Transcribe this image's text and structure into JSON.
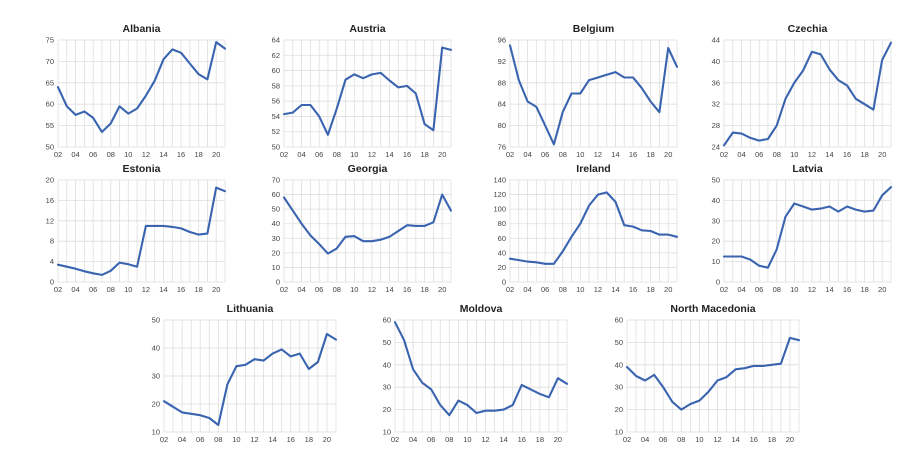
{
  "chart_data": [
    {
      "type": "line",
      "title": "Albania",
      "x": [
        2,
        3,
        4,
        5,
        6,
        7,
        8,
        9,
        10,
        11,
        12,
        13,
        14,
        15,
        16,
        17,
        18,
        19,
        20,
        21
      ],
      "x_ticks": [
        "02",
        "04",
        "06",
        "08",
        "10",
        "12",
        "14",
        "16",
        "18",
        "20"
      ],
      "ylim": [
        50,
        75
      ],
      "y_ticks": [
        "50",
        "55",
        "60",
        "65",
        "70",
        "75"
      ],
      "values": [
        64,
        59.5,
        57.5,
        58.3,
        56.8,
        53.5,
        55.5,
        59.5,
        57.8,
        59,
        62,
        65.5,
        70.5,
        72.8,
        72,
        69.5,
        67,
        65.8,
        74.5,
        73
      ],
      "grid": true,
      "series_color": "#3a64b0"
    },
    {
      "type": "line",
      "title": "Austria",
      "x": [
        2,
        3,
        4,
        5,
        6,
        7,
        8,
        9,
        10,
        11,
        12,
        13,
        14,
        15,
        16,
        17,
        18,
        19,
        20,
        21
      ],
      "x_ticks": [
        "02",
        "04",
        "06",
        "08",
        "10",
        "12",
        "14",
        "16",
        "18",
        "20"
      ],
      "ylim": [
        50,
        64
      ],
      "y_ticks": [
        "50",
        "52",
        "54",
        "56",
        "58",
        "60",
        "62",
        "64"
      ],
      "values": [
        54.3,
        54.5,
        55.5,
        55.5,
        54,
        51.6,
        55,
        58.8,
        59.5,
        59,
        59.5,
        59.7,
        58.7,
        57.8,
        58,
        57,
        53,
        52.2,
        63,
        62.7
      ],
      "grid": true,
      "series_color": "#3a64b0"
    },
    {
      "type": "line",
      "title": "Belgium",
      "x": [
        2,
        3,
        4,
        5,
        6,
        7,
        8,
        9,
        10,
        11,
        12,
        13,
        14,
        15,
        16,
        17,
        18,
        19,
        20,
        21
      ],
      "x_ticks": [
        "02",
        "04",
        "06",
        "08",
        "10",
        "12",
        "14",
        "16",
        "18",
        "20"
      ],
      "ylim": [
        76,
        96
      ],
      "y_ticks": [
        "76",
        "80",
        "84",
        "88",
        "92",
        "96"
      ],
      "values": [
        95,
        88.5,
        84.5,
        83.5,
        80,
        76.5,
        82.5,
        86,
        86,
        88.5,
        89,
        89.5,
        90,
        89,
        89,
        87,
        84.5,
        82.5,
        94.5,
        91
      ],
      "grid": true,
      "series_color": "#3a64b0"
    },
    {
      "type": "line",
      "title": "Czechia",
      "x": [
        2,
        3,
        4,
        5,
        6,
        7,
        8,
        9,
        10,
        11,
        12,
        13,
        14,
        15,
        16,
        17,
        18,
        19,
        20,
        21
      ],
      "x_ticks": [
        "02",
        "04",
        "06",
        "08",
        "10",
        "12",
        "14",
        "16",
        "18",
        "20"
      ],
      "ylim": [
        24,
        44
      ],
      "y_ticks": [
        "24",
        "28",
        "32",
        "36",
        "40",
        "44"
      ],
      "values": [
        24.3,
        26.7,
        26.5,
        25.7,
        25.2,
        25.5,
        28,
        33,
        36,
        38.3,
        41.8,
        41.3,
        38.5,
        36.5,
        35.5,
        33,
        32,
        31,
        40.3,
        43.5
      ],
      "grid": true,
      "series_color": "#3a64b0"
    },
    {
      "type": "line",
      "title": "Estonia",
      "x": [
        2,
        3,
        4,
        5,
        6,
        7,
        8,
        9,
        10,
        11,
        12,
        13,
        14,
        15,
        16,
        17,
        18,
        19,
        20,
        21
      ],
      "x_ticks": [
        "02",
        "04",
        "06",
        "08",
        "10",
        "12",
        "14",
        "16",
        "18",
        "20"
      ],
      "ylim": [
        0,
        20
      ],
      "y_ticks": [
        "0",
        "4",
        "8",
        "12",
        "16",
        "20"
      ],
      "values": [
        3.4,
        3,
        2.6,
        2.1,
        1.7,
        1.4,
        2.2,
        3.8,
        3.5,
        3,
        11,
        11,
        11,
        10.8,
        10.5,
        9.8,
        9.3,
        9.5,
        18.5,
        17.8
      ],
      "grid": true,
      "series_color": "#3a64b0"
    },
    {
      "type": "line",
      "title": "Georgia",
      "x": [
        2,
        3,
        4,
        5,
        6,
        7,
        8,
        9,
        10,
        11,
        12,
        13,
        14,
        15,
        16,
        17,
        18,
        19,
        20,
        21
      ],
      "x_ticks": [
        "02",
        "04",
        "06",
        "08",
        "10",
        "12",
        "14",
        "16",
        "18",
        "20"
      ],
      "ylim": [
        0,
        70
      ],
      "y_ticks": [
        "0",
        "10",
        "20",
        "30",
        "40",
        "50",
        "60",
        "70"
      ],
      "values": [
        58,
        49,
        40,
        32,
        26,
        19.5,
        23,
        31,
        31.5,
        28,
        28,
        29,
        31,
        35,
        39,
        38.5,
        38.5,
        41,
        60,
        49
      ],
      "grid": true,
      "series_color": "#3a64b0"
    },
    {
      "type": "line",
      "title": "Ireland",
      "x": [
        2,
        3,
        4,
        5,
        6,
        7,
        8,
        9,
        10,
        11,
        12,
        13,
        14,
        15,
        16,
        17,
        18,
        19,
        20,
        21
      ],
      "x_ticks": [
        "02",
        "04",
        "06",
        "08",
        "10",
        "12",
        "14",
        "16",
        "18",
        "20"
      ],
      "ylim": [
        0,
        140
      ],
      "y_ticks": [
        "0",
        "20",
        "40",
        "60",
        "80",
        "100",
        "120",
        "140"
      ],
      "values": [
        32,
        30,
        28,
        27,
        25,
        25,
        42,
        62,
        80,
        105,
        120,
        123,
        110,
        78,
        76,
        71,
        70,
        65,
        65,
        62
      ],
      "grid": true,
      "series_color": "#3a64b0"
    },
    {
      "type": "line",
      "title": "Latvia",
      "x": [
        2,
        3,
        4,
        5,
        6,
        7,
        8,
        9,
        10,
        11,
        12,
        13,
        14,
        15,
        16,
        17,
        18,
        19,
        20,
        21
      ],
      "x_ticks": [
        "02",
        "04",
        "06",
        "08",
        "10",
        "12",
        "14",
        "16",
        "18",
        "20"
      ],
      "ylim": [
        0,
        50
      ],
      "y_ticks": [
        "0",
        "10",
        "20",
        "30",
        "40",
        "50"
      ],
      "values": [
        12.5,
        12.5,
        12.5,
        11,
        8,
        7,
        16,
        32,
        38.5,
        37,
        35.5,
        36,
        37,
        34.5,
        37,
        35.5,
        34.5,
        35,
        42.5,
        46.5
      ],
      "grid": true,
      "series_color": "#3a64b0"
    },
    {
      "type": "line",
      "title": "Lithuania",
      "x": [
        2,
        3,
        4,
        5,
        6,
        7,
        8,
        9,
        10,
        11,
        12,
        13,
        14,
        15,
        16,
        17,
        18,
        19,
        20,
        21
      ],
      "x_ticks": [
        "02",
        "04",
        "06",
        "08",
        "10",
        "12",
        "14",
        "16",
        "18",
        "20"
      ],
      "ylim": [
        10,
        50
      ],
      "y_ticks": [
        "10",
        "20",
        "30",
        "40",
        "50"
      ],
      "values": [
        21,
        19,
        17,
        16.5,
        16,
        15,
        12.5,
        27,
        33.5,
        34,
        36,
        35.5,
        38,
        39.5,
        37,
        38,
        32.5,
        35,
        45,
        43
      ],
      "grid": true,
      "series_color": "#3a64b0"
    },
    {
      "type": "line",
      "title": "Moldova",
      "x": [
        2,
        3,
        4,
        5,
        6,
        7,
        8,
        9,
        10,
        11,
        12,
        13,
        14,
        15,
        16,
        17,
        18,
        19,
        20,
        21
      ],
      "x_ticks": [
        "02",
        "04",
        "06",
        "08",
        "10",
        "12",
        "14",
        "16",
        "18",
        "20"
      ],
      "ylim": [
        10,
        60
      ],
      "y_ticks": [
        "10",
        "20",
        "30",
        "40",
        "50",
        "60"
      ],
      "values": [
        59,
        51,
        38,
        32,
        29,
        22,
        17.5,
        24,
        22,
        18.5,
        19.5,
        19.5,
        20,
        22,
        31,
        29,
        27,
        25.5,
        34,
        31.5
      ],
      "grid": true,
      "series_color": "#3a64b0"
    },
    {
      "type": "line",
      "title": "North Macedonia",
      "x": [
        2,
        3,
        4,
        5,
        6,
        7,
        8,
        9,
        10,
        11,
        12,
        13,
        14,
        15,
        16,
        17,
        18,
        19,
        20,
        21
      ],
      "x_ticks": [
        "02",
        "04",
        "06",
        "08",
        "10",
        "12",
        "14",
        "16",
        "18",
        "20"
      ],
      "ylim": [
        10,
        60
      ],
      "y_ticks": [
        "10",
        "20",
        "30",
        "40",
        "50",
        "60"
      ],
      "values": [
        39,
        35,
        33,
        35.5,
        30,
        23.5,
        20,
        22.5,
        24,
        28,
        33,
        34.5,
        38,
        38.5,
        39.5,
        39.5,
        40,
        40.5,
        52,
        51
      ],
      "grid": true,
      "series_color": "#3a64b0"
    }
  ]
}
